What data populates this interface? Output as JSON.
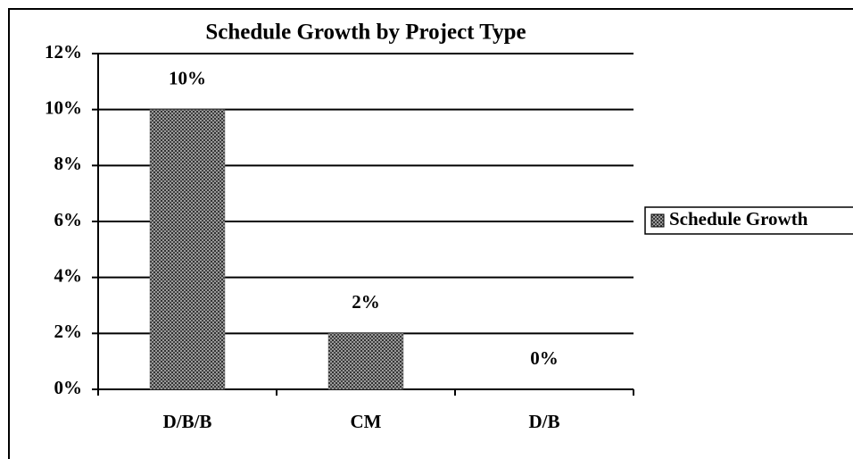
{
  "chart_data": {
    "type": "bar",
    "title": "Schedule Growth by Project Type",
    "categories": [
      "D/B/B",
      "CM",
      "D/B"
    ],
    "series": [
      {
        "name": "Schedule Growth",
        "color": "#6e6e6e",
        "values": [
          10,
          2,
          0
        ],
        "value_labels": [
          "10%",
          "2%",
          "0%"
        ]
      }
    ],
    "ylim": [
      0,
      12
    ],
    "yticks": [
      {
        "value": 0,
        "label": "0%"
      },
      {
        "value": 2,
        "label": "2%"
      },
      {
        "value": 4,
        "label": "4%"
      },
      {
        "value": 6,
        "label": "6%"
      },
      {
        "value": 8,
        "label": "8%"
      },
      {
        "value": 10,
        "label": "10%"
      },
      {
        "value": 12,
        "label": "12%"
      }
    ],
    "grid": true,
    "legend": "right"
  }
}
